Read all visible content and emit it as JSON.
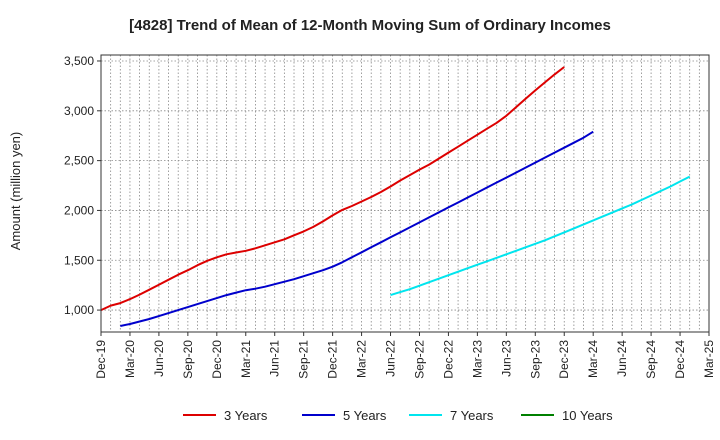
{
  "chart_data": {
    "type": "line",
    "title": "[4828]  Trend of Mean of 12-Month Moving Sum of Ordinary Incomes",
    "xlabel": "",
    "ylabel": "Amount (million yen)",
    "ylim": [
      780,
      3560
    ],
    "y_ticks": [
      1000,
      1500,
      2000,
      2500,
      3000,
      3500
    ],
    "y_tick_labels": [
      "1,000",
      "1,500",
      "2,000",
      "2,500",
      "3,000",
      "3,500"
    ],
    "x_ticks": [
      "Dec-19",
      "Mar-20",
      "Jun-20",
      "Sep-20",
      "Dec-20",
      "Mar-21",
      "Jun-21",
      "Sep-21",
      "Dec-21",
      "Mar-22",
      "Jun-22",
      "Sep-22",
      "Dec-22",
      "Mar-23",
      "Jun-23",
      "Sep-23",
      "Dec-23",
      "Mar-24",
      "Jun-24",
      "Sep-24",
      "Dec-24",
      "Mar-25"
    ],
    "grid": true,
    "legend_position": "bottom",
    "series": [
      {
        "name": "3 Years",
        "color": "#dd0000",
        "start_index": 0,
        "values": [
          1000,
          1045,
          1070,
          1110,
          1155,
          1205,
          1255,
          1305,
          1355,
          1400,
          1450,
          1495,
          1530,
          1560,
          1578,
          1595,
          1620,
          1650,
          1680,
          1710,
          1750,
          1790,
          1835,
          1890,
          1950,
          2005,
          2045,
          2090,
          2135,
          2185,
          2240,
          2300,
          2355,
          2410,
          2460,
          2520,
          2580,
          2640,
          2700,
          2760,
          2820,
          2880,
          2950,
          3035,
          3120,
          3205,
          3285,
          3365,
          3440
        ]
      },
      {
        "name": "5 Years",
        "color": "#0000cc",
        "start_index": 2,
        "values": [
          840,
          860,
          885,
          910,
          940,
          970,
          1000,
          1030,
          1060,
          1090,
          1120,
          1150,
          1175,
          1200,
          1215,
          1235,
          1260,
          1285,
          1310,
          1340,
          1370,
          1400,
          1435,
          1480,
          1530,
          1580,
          1630,
          1680,
          1730,
          1780,
          1830,
          1880,
          1930,
          1980,
          2030,
          2080,
          2130,
          2180,
          2230,
          2280,
          2330,
          2380,
          2430,
          2480,
          2530,
          2580,
          2630,
          2680,
          2730,
          2790
        ]
      },
      {
        "name": "7 Years",
        "color": "#00e5ee",
        "start_index": 30,
        "values": [
          1150,
          1180,
          1210,
          1245,
          1280,
          1315,
          1350,
          1385,
          1420,
          1455,
          1490,
          1525,
          1560,
          1595,
          1630,
          1665,
          1700,
          1740,
          1780,
          1820,
          1860,
          1900,
          1940,
          1980,
          2020,
          2060,
          2105,
          2150,
          2195,
          2240,
          2290,
          2340
        ]
      },
      {
        "name": "10 Years",
        "color": "#008000",
        "start_index": 0,
        "values": []
      }
    ]
  }
}
